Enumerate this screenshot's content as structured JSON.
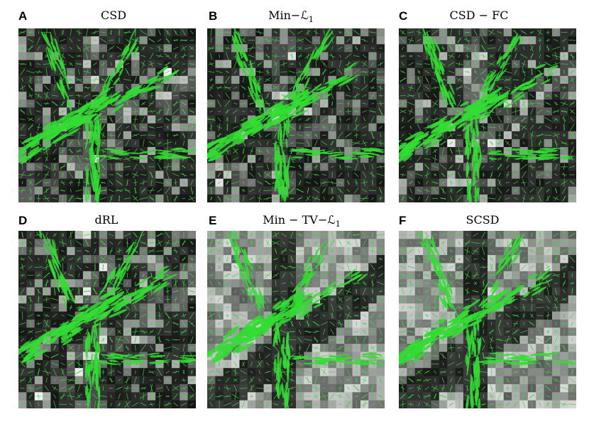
{
  "panels": [
    {
      "letter": "A",
      "title": "CSD",
      "bg": "dark"
    },
    {
      "letter": "B",
      "title": "Min−ℒ",
      "title_sub": "1",
      "bg": "dark"
    },
    {
      "letter": "C",
      "title": "CSD − FC",
      "bg": "dark"
    },
    {
      "letter": "D",
      "title": "dRL",
      "bg": "dark"
    },
    {
      "letter": "E",
      "title": "Min − TV−ℒ",
      "title_sub": "1",
      "bg": "bright"
    },
    {
      "letter": "F",
      "title": "SCSD",
      "bg": "bright"
    }
  ],
  "colors": {
    "glyph_green": "#33dd33",
    "background": "#111111",
    "page": "#ffffff"
  }
}
